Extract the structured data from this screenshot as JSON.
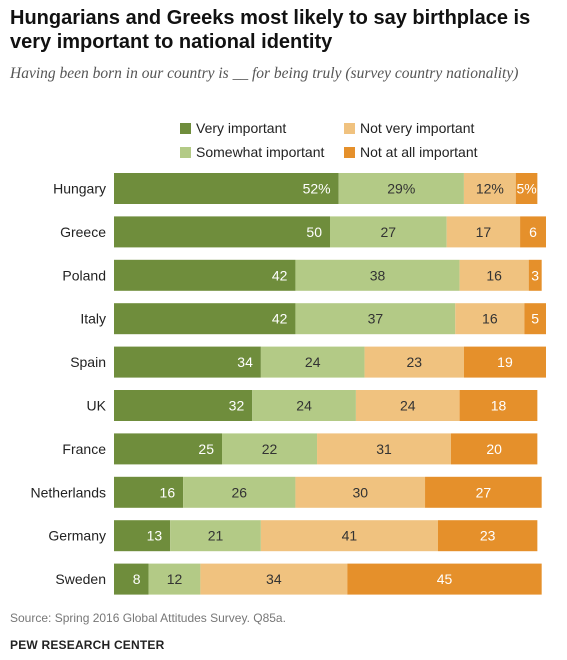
{
  "header": {
    "title": "Hungarians and Greeks most likely to say birthplace is very important to national identity",
    "subtitle": "Having been born in our country is __ for being truly (survey country nationality)"
  },
  "colors": {
    "very": "#6f8d3c",
    "somewhat": "#b3ca86",
    "not_very": "#f0c27f",
    "not_at_all": "#e5902b"
  },
  "chart_data": {
    "type": "bar",
    "orientation": "horizontal",
    "stacked": true,
    "categories": [
      "Hungary",
      "Greece",
      "Poland",
      "Italy",
      "Spain",
      "UK",
      "France",
      "Netherlands",
      "Germany",
      "Sweden"
    ],
    "series": [
      {
        "name": "Very important",
        "key": "very",
        "values": [
          52,
          50,
          42,
          42,
          34,
          32,
          25,
          16,
          13,
          8
        ]
      },
      {
        "name": "Somewhat important",
        "key": "somewhat",
        "values": [
          29,
          27,
          38,
          37,
          24,
          24,
          22,
          26,
          21,
          12
        ]
      },
      {
        "name": "Not very important",
        "key": "not_very",
        "values": [
          12,
          17,
          16,
          16,
          23,
          24,
          31,
          30,
          41,
          34
        ]
      },
      {
        "name": "Not at all important",
        "key": "not_at_all",
        "values": [
          5,
          6,
          3,
          5,
          19,
          18,
          20,
          27,
          23,
          45
        ]
      }
    ],
    "value_suffix_first_row": "%",
    "legend_placement": "top",
    "grid": false
  },
  "footer": {
    "source": "Source: Spring 2016 Global Attitudes Survey. Q85a.",
    "brand": "PEW RESEARCH CENTER"
  }
}
